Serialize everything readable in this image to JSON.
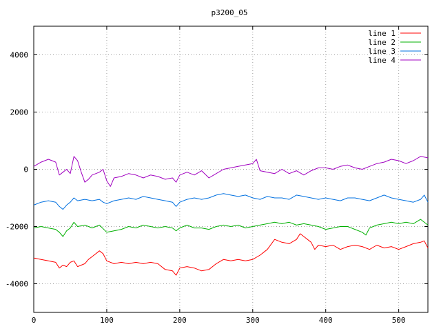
{
  "chart_data": {
    "type": "line",
    "title": "p3200_05",
    "xlabel": "",
    "ylabel": "",
    "xlim": [
      0,
      540
    ],
    "ylim": [
      -5000,
      5000
    ],
    "x_ticks": [
      0,
      100,
      200,
      300,
      400,
      500
    ],
    "y_ticks": [
      -4000,
      -2000,
      0,
      2000,
      4000
    ],
    "grid": true,
    "legend_position": "top-right",
    "series": [
      {
        "name": "line 1",
        "color": "#ff0000",
        "points": [
          [
            0,
            -3100
          ],
          [
            10,
            -3150
          ],
          [
            20,
            -3200
          ],
          [
            30,
            -3250
          ],
          [
            35,
            -3450
          ],
          [
            40,
            -3350
          ],
          [
            45,
            -3400
          ],
          [
            50,
            -3250
          ],
          [
            55,
            -3200
          ],
          [
            60,
            -3400
          ],
          [
            70,
            -3300
          ],
          [
            75,
            -3150
          ],
          [
            80,
            -3050
          ],
          [
            90,
            -2850
          ],
          [
            95,
            -2950
          ],
          [
            100,
            -3200
          ],
          [
            110,
            -3300
          ],
          [
            120,
            -3250
          ],
          [
            130,
            -3300
          ],
          [
            140,
            -3250
          ],
          [
            150,
            -3300
          ],
          [
            160,
            -3250
          ],
          [
            170,
            -3300
          ],
          [
            180,
            -3500
          ],
          [
            190,
            -3550
          ],
          [
            195,
            -3700
          ],
          [
            200,
            -3450
          ],
          [
            210,
            -3400
          ],
          [
            220,
            -3450
          ],
          [
            230,
            -3550
          ],
          [
            240,
            -3500
          ],
          [
            250,
            -3300
          ],
          [
            260,
            -3150
          ],
          [
            270,
            -3200
          ],
          [
            280,
            -3150
          ],
          [
            290,
            -3200
          ],
          [
            300,
            -3150
          ],
          [
            310,
            -3000
          ],
          [
            320,
            -2800
          ],
          [
            330,
            -2450
          ],
          [
            340,
            -2550
          ],
          [
            350,
            -2600
          ],
          [
            360,
            -2450
          ],
          [
            365,
            -2250
          ],
          [
            370,
            -2350
          ],
          [
            380,
            -2550
          ],
          [
            385,
            -2800
          ],
          [
            390,
            -2650
          ],
          [
            400,
            -2700
          ],
          [
            410,
            -2650
          ],
          [
            420,
            -2800
          ],
          [
            430,
            -2700
          ],
          [
            440,
            -2650
          ],
          [
            450,
            -2700
          ],
          [
            460,
            -2800
          ],
          [
            470,
            -2650
          ],
          [
            480,
            -2750
          ],
          [
            490,
            -2700
          ],
          [
            500,
            -2800
          ],
          [
            510,
            -2700
          ],
          [
            520,
            -2600
          ],
          [
            530,
            -2550
          ],
          [
            535,
            -2500
          ],
          [
            540,
            -2750
          ]
        ]
      },
      {
        "name": "line 2",
        "color": "#00b000",
        "points": [
          [
            0,
            -2050
          ],
          [
            10,
            -2000
          ],
          [
            20,
            -2050
          ],
          [
            30,
            -2100
          ],
          [
            35,
            -2200
          ],
          [
            40,
            -2350
          ],
          [
            45,
            -2150
          ],
          [
            50,
            -2050
          ],
          [
            55,
            -1850
          ],
          [
            60,
            -2000
          ],
          [
            70,
            -1950
          ],
          [
            80,
            -2050
          ],
          [
            90,
            -1950
          ],
          [
            100,
            -2200
          ],
          [
            110,
            -2150
          ],
          [
            120,
            -2100
          ],
          [
            130,
            -2000
          ],
          [
            140,
            -2050
          ],
          [
            150,
            -1950
          ],
          [
            160,
            -2000
          ],
          [
            170,
            -2050
          ],
          [
            180,
            -2000
          ],
          [
            190,
            -2050
          ],
          [
            195,
            -2150
          ],
          [
            200,
            -2050
          ],
          [
            210,
            -1950
          ],
          [
            220,
            -2050
          ],
          [
            230,
            -2050
          ],
          [
            240,
            -2100
          ],
          [
            250,
            -2000
          ],
          [
            260,
            -1950
          ],
          [
            270,
            -2000
          ],
          [
            280,
            -1950
          ],
          [
            290,
            -2050
          ],
          [
            300,
            -2000
          ],
          [
            310,
            -1950
          ],
          [
            320,
            -1900
          ],
          [
            330,
            -1850
          ],
          [
            340,
            -1900
          ],
          [
            350,
            -1850
          ],
          [
            360,
            -1950
          ],
          [
            370,
            -1900
          ],
          [
            380,
            -1950
          ],
          [
            390,
            -2000
          ],
          [
            400,
            -2100
          ],
          [
            410,
            -2050
          ],
          [
            420,
            -2000
          ],
          [
            430,
            -2000
          ],
          [
            440,
            -2100
          ],
          [
            450,
            -2200
          ],
          [
            455,
            -2300
          ],
          [
            460,
            -2050
          ],
          [
            470,
            -1950
          ],
          [
            480,
            -1900
          ],
          [
            490,
            -1850
          ],
          [
            500,
            -1900
          ],
          [
            510,
            -1850
          ],
          [
            520,
            -1900
          ],
          [
            530,
            -1750
          ],
          [
            540,
            -1950
          ]
        ]
      },
      {
        "name": "line 3",
        "color": "#0070e0",
        "points": [
          [
            0,
            -1250
          ],
          [
            10,
            -1150
          ],
          [
            20,
            -1100
          ],
          [
            30,
            -1150
          ],
          [
            35,
            -1300
          ],
          [
            40,
            -1400
          ],
          [
            45,
            -1250
          ],
          [
            50,
            -1150
          ],
          [
            55,
            -1000
          ],
          [
            60,
            -1100
          ],
          [
            70,
            -1050
          ],
          [
            80,
            -1100
          ],
          [
            90,
            -1050
          ],
          [
            95,
            -1150
          ],
          [
            100,
            -1200
          ],
          [
            110,
            -1100
          ],
          [
            120,
            -1050
          ],
          [
            130,
            -1000
          ],
          [
            140,
            -1050
          ],
          [
            150,
            -950
          ],
          [
            160,
            -1000
          ],
          [
            170,
            -1050
          ],
          [
            180,
            -1100
          ],
          [
            190,
            -1150
          ],
          [
            195,
            -1300
          ],
          [
            200,
            -1150
          ],
          [
            210,
            -1050
          ],
          [
            220,
            -1000
          ],
          [
            230,
            -1050
          ],
          [
            240,
            -1000
          ],
          [
            250,
            -900
          ],
          [
            260,
            -850
          ],
          [
            270,
            -900
          ],
          [
            280,
            -950
          ],
          [
            290,
            -900
          ],
          [
            300,
            -1000
          ],
          [
            310,
            -1050
          ],
          [
            320,
            -950
          ],
          [
            330,
            -1000
          ],
          [
            340,
            -1000
          ],
          [
            350,
            -1050
          ],
          [
            360,
            -900
          ],
          [
            370,
            -950
          ],
          [
            380,
            -1000
          ],
          [
            390,
            -1050
          ],
          [
            400,
            -1000
          ],
          [
            410,
            -1050
          ],
          [
            420,
            -1100
          ],
          [
            430,
            -1000
          ],
          [
            440,
            -1000
          ],
          [
            450,
            -1050
          ],
          [
            460,
            -1100
          ],
          [
            470,
            -1000
          ],
          [
            480,
            -900
          ],
          [
            490,
            -1000
          ],
          [
            500,
            -1050
          ],
          [
            510,
            -1100
          ],
          [
            520,
            -1150
          ],
          [
            530,
            -1050
          ],
          [
            535,
            -900
          ],
          [
            540,
            -1150
          ]
        ]
      },
      {
        "name": "line 4",
        "color": "#a000c0",
        "points": [
          [
            0,
            100
          ],
          [
            10,
            250
          ],
          [
            20,
            350
          ],
          [
            25,
            300
          ],
          [
            30,
            250
          ],
          [
            35,
            -200
          ],
          [
            40,
            -100
          ],
          [
            45,
            0
          ],
          [
            50,
            -150
          ],
          [
            55,
            450
          ],
          [
            60,
            300
          ],
          [
            65,
            -100
          ],
          [
            70,
            -450
          ],
          [
            75,
            -350
          ],
          [
            80,
            -200
          ],
          [
            90,
            -100
          ],
          [
            95,
            0
          ],
          [
            100,
            -400
          ],
          [
            105,
            -600
          ],
          [
            110,
            -300
          ],
          [
            120,
            -250
          ],
          [
            130,
            -150
          ],
          [
            140,
            -200
          ],
          [
            150,
            -300
          ],
          [
            160,
            -200
          ],
          [
            170,
            -250
          ],
          [
            180,
            -350
          ],
          [
            190,
            -300
          ],
          [
            195,
            -450
          ],
          [
            200,
            -200
          ],
          [
            210,
            -100
          ],
          [
            220,
            -200
          ],
          [
            230,
            -50
          ],
          [
            240,
            -300
          ],
          [
            250,
            -150
          ],
          [
            260,
            0
          ],
          [
            270,
            50
          ],
          [
            280,
            100
          ],
          [
            290,
            150
          ],
          [
            300,
            200
          ],
          [
            305,
            350
          ],
          [
            310,
            -50
          ],
          [
            320,
            -100
          ],
          [
            330,
            -150
          ],
          [
            340,
            0
          ],
          [
            350,
            -150
          ],
          [
            360,
            -50
          ],
          [
            370,
            -200
          ],
          [
            380,
            -50
          ],
          [
            390,
            50
          ],
          [
            400,
            50
          ],
          [
            410,
            0
          ],
          [
            420,
            100
          ],
          [
            430,
            150
          ],
          [
            440,
            50
          ],
          [
            450,
            0
          ],
          [
            460,
            100
          ],
          [
            470,
            200
          ],
          [
            480,
            250
          ],
          [
            490,
            350
          ],
          [
            500,
            300
          ],
          [
            510,
            200
          ],
          [
            520,
            300
          ],
          [
            530,
            450
          ],
          [
            540,
            400
          ]
        ]
      }
    ]
  }
}
